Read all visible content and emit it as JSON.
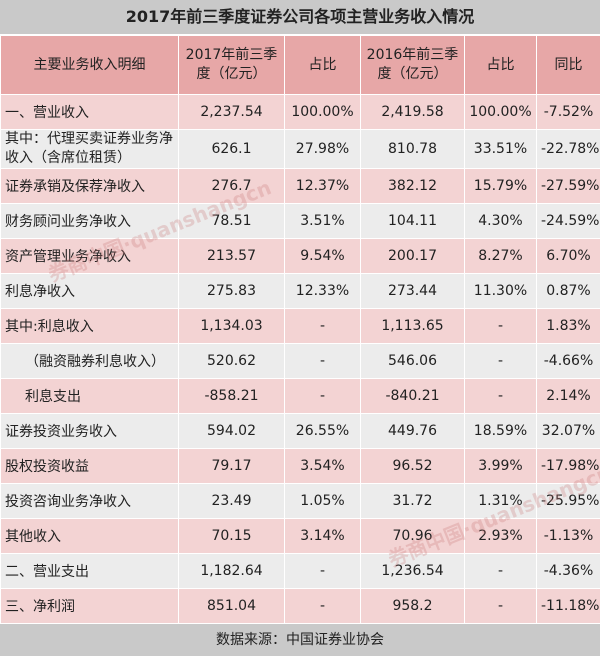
{
  "title": "2017年前三季度证券公司各项主营业务收入情况",
  "headers": [
    "主要业务收入明细",
    "2017年前三季度（亿元）",
    "占比",
    "2016年前三季度（亿元）",
    "占比",
    "同比"
  ],
  "rows": [
    {
      "name": "一、营业收入",
      "v2017": "2,237.54",
      "p2017": "100.00%",
      "v2016": "2,419.58",
      "p2016": "100.00%",
      "yoy": "-7.52%"
    },
    {
      "name": "其中：代理买卖证券业务净收入（含席位租赁）",
      "v2017": "626.1",
      "p2017": "27.98%",
      "v2016": "810.78",
      "p2016": "33.51%",
      "yoy": "-22.78%"
    },
    {
      "name": "证券承销及保荐净收入",
      "v2017": "276.7",
      "p2017": "12.37%",
      "v2016": "382.12",
      "p2016": "15.79%",
      "yoy": "-27.59%"
    },
    {
      "name": "财务顾问业务净收入",
      "v2017": "78.51",
      "p2017": "3.51%",
      "v2016": "104.11",
      "p2016": "4.30%",
      "yoy": "-24.59%"
    },
    {
      "name": "资产管理业务净收入",
      "v2017": "213.57",
      "p2017": "9.54%",
      "v2016": "200.17",
      "p2016": "8.27%",
      "yoy": "6.70%"
    },
    {
      "name": "利息净收入",
      "v2017": "275.83",
      "p2017": "12.33%",
      "v2016": "273.44",
      "p2016": "11.30%",
      "yoy": "0.87%"
    },
    {
      "name": "其中:利息收入",
      "v2017": "1,134.03",
      "p2017": "-",
      "v2016": "1,113.65",
      "p2016": "-",
      "yoy": "1.83%"
    },
    {
      "name": "（融资融券利息收入）",
      "v2017": "520.62",
      "p2017": "-",
      "v2016": "546.06",
      "p2016": "-",
      "yoy": "-4.66%"
    },
    {
      "name": "利息支出",
      "v2017": "-858.21",
      "p2017": "-",
      "v2016": "-840.21",
      "p2016": "-",
      "yoy": "2.14%"
    },
    {
      "name": "证券投资业务收入",
      "v2017": "594.02",
      "p2017": "26.55%",
      "v2016": "449.76",
      "p2016": "18.59%",
      "yoy": "32.07%"
    },
    {
      "name": "股权投资收益",
      "v2017": "79.17",
      "p2017": "3.54%",
      "v2016": "96.52",
      "p2016": "3.99%",
      "yoy": "-17.98%"
    },
    {
      "name": "投资咨询业务净收入",
      "v2017": "23.49",
      "p2017": "1.05%",
      "v2016": "31.72",
      "p2016": "1.31%",
      "yoy": "-25.95%"
    },
    {
      "name": "其他收入",
      "v2017": "70.15",
      "p2017": "3.14%",
      "v2016": "70.96",
      "p2016": "2.93%",
      "yoy": "-1.13%"
    },
    {
      "name": "二、营业支出",
      "v2017": "1,182.64",
      "p2017": "-",
      "v2016": "1,236.54",
      "p2016": "-",
      "yoy": "-4.36%"
    },
    {
      "name": "三、净利润",
      "v2017": "851.04",
      "p2017": "-",
      "v2016": "958.2",
      "p2016": "-",
      "yoy": "-11.18%"
    }
  ],
  "footer": "数据来源：中国证券业协会",
  "watermark": "券商中国·quanshangcn",
  "colors": {
    "header": "#e7a7a7",
    "row_pink": "#f3d3d3",
    "row_gray": "#ececec",
    "title_bg": "#c9c9c9"
  }
}
